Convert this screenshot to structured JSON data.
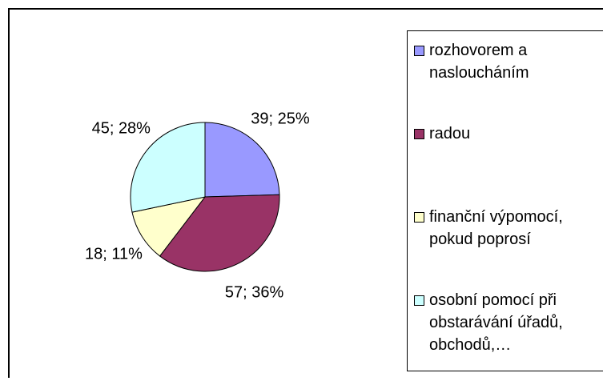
{
  "chart_data": {
    "type": "pie",
    "categories": [
      "rozhovorem a nasloucháním",
      "radou",
      "finanční výpomocí, pokud poprosí",
      "osobní pomocí při obstarávání úřadů, obchodů,…"
    ],
    "values": [
      39,
      57,
      18,
      45
    ],
    "value_labels": [
      "39; 25%",
      "57; 36%",
      "18; 11%",
      "45; 28%"
    ],
    "colors": [
      "#9999ff",
      "#993366",
      "#ffffcc",
      "#ccffff"
    ],
    "legend": "right"
  }
}
